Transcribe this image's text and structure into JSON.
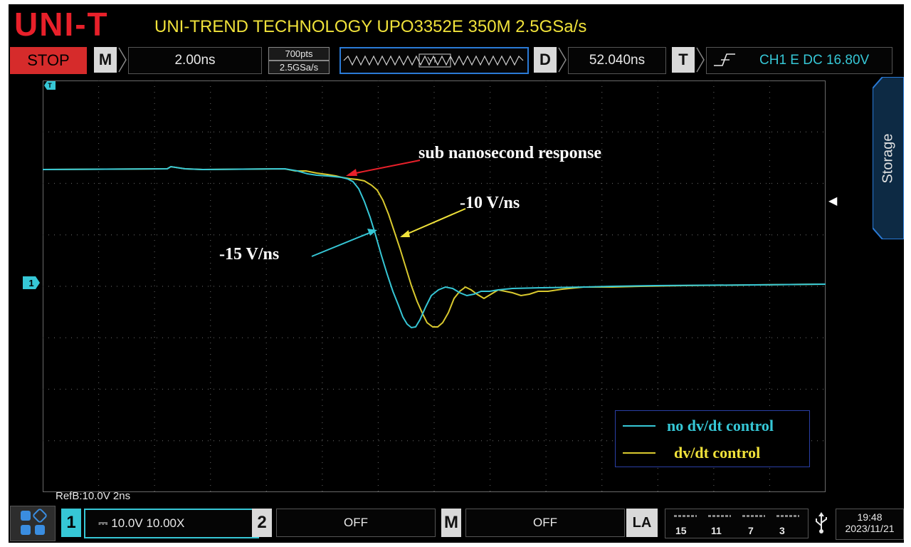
{
  "header": {
    "logo": "UNI-T",
    "model": "UNI-TREND TECHNOLOGY UPO3352E 350M 2.5GSa/s"
  },
  "topbar": {
    "run_state": "STOP",
    "timebase_label": "M",
    "timebase_value": "2.00ns",
    "memory_depth": "700pts",
    "sample_rate": "2.5GSa/s",
    "delay_label": "D",
    "delay_value": "52.040ns",
    "trigger_label": "T",
    "trigger_value": "CH1 E DC 16.80V"
  },
  "sidebar": {
    "storage_label": "Storage"
  },
  "markers": {
    "channel1": "1",
    "trigger": "T"
  },
  "annotations": {
    "response": "sub nanosecond response",
    "slew_slow": "-10 V/ns",
    "slew_fast": "-15 V/ns"
  },
  "legend": [
    {
      "label": "no dv/dt control",
      "color": "#36c7d6"
    },
    {
      "label": "dv/dt control",
      "color": "#d9c92e"
    }
  ],
  "bottom": {
    "refb": "RefB:10.0V  2ns",
    "ch1_num": "1",
    "ch1_setting": "⎓ 10.0V  10.00X",
    "ch2_num": "2",
    "ch2_setting": "OFF",
    "math_label": "M",
    "math_setting": "OFF",
    "la_label": "LA",
    "la_groups": [
      "15",
      "11",
      "7",
      "3"
    ],
    "time": "19:48",
    "date": "2023/11/21"
  },
  "colors": {
    "ch1": "#36c7d6",
    "ref": "#d9c92e",
    "stop": "#d62b2b",
    "brand": "#e8202a",
    "model_text": "#f0e23a"
  }
}
